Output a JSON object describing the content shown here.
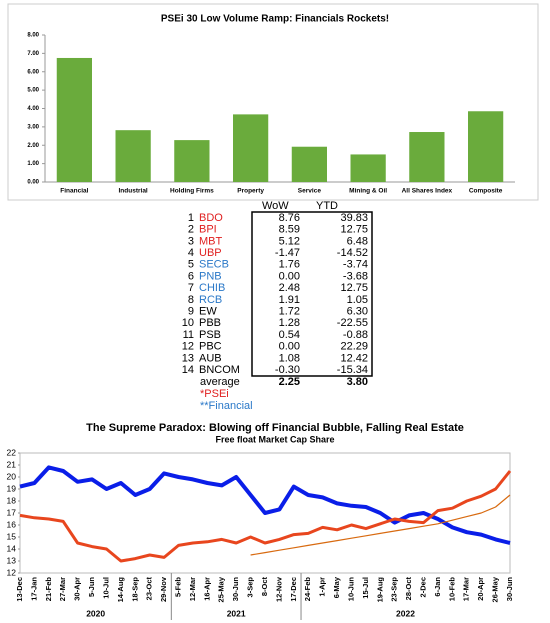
{
  "chart_data": [
    {
      "type": "bar",
      "title": "PSEi 30 Low Volume Ramp: Financials Rockets!",
      "categories": [
        "Financial",
        "Industrial",
        "Holding Firms",
        "Property",
        "Service",
        "Mining & Oil",
        "All Shares Index",
        "Composite"
      ],
      "values": [
        6.75,
        2.82,
        2.28,
        3.68,
        1.92,
        1.5,
        2.72,
        3.85
      ],
      "color": "#6aab3c",
      "ylim": [
        0,
        8
      ],
      "yticks": [
        {
          "value": 0,
          "label": "0.00"
        },
        {
          "value": 1,
          "label": "1.00"
        },
        {
          "value": 2,
          "label": "2.00"
        },
        {
          "value": 3,
          "label": "3.00"
        },
        {
          "value": 4,
          "label": "4.00"
        },
        {
          "value": 5,
          "label": "5.00"
        },
        {
          "value": 6,
          "label": "6.00"
        },
        {
          "value": 7,
          "label": "7.00"
        },
        {
          "value": 8,
          "label": "8.00"
        }
      ],
      "grid": false
    },
    {
      "type": "line",
      "title": "The Supreme Paradox:  Blowing off Financial Bubble, Falling Real Estate",
      "subtitle": "Free float Market Cap Share",
      "categories": [
        "13-Dec",
        "17-Jan",
        "21-Feb",
        "27-Mar",
        "30-Apr",
        "5-Jun",
        "10-Jul",
        "14-Aug",
        "18-Sep",
        "23-Oct",
        "29-Nov",
        "5-Feb",
        "12-Mar",
        "16-Apr",
        "25-May",
        "30-Jun",
        "3-Sep",
        "8-Oct",
        "12-Nov",
        "17-Dec",
        "24-Feb",
        "1-Apr",
        "6-May",
        "10-Jun",
        "15-Jul",
        "19-Aug",
        "23-Sep",
        "28-Oct",
        "2-Dec",
        "6-Jan",
        "10-Feb",
        "17-Mar",
        "20-Apr",
        "26-May",
        "30-Jun"
      ],
      "year_labels": [
        "2020",
        "2021",
        "2022"
      ],
      "series": [
        {
          "color": "#0a1ee8",
          "width": 4,
          "values": [
            19.2,
            19.5,
            20.8,
            20.5,
            19.6,
            19.8,
            19.0,
            19.5,
            18.5,
            19.0,
            20.3,
            20.0,
            19.8,
            19.5,
            19.3,
            20.0,
            18.5,
            17.0,
            17.3,
            19.2,
            18.5,
            18.3,
            17.8,
            17.6,
            17.5,
            17.0,
            16.2,
            16.8,
            17.0,
            16.5,
            15.8,
            15.4,
            15.2,
            14.8,
            14.5
          ]
        },
        {
          "color": "#e8461e",
          "width": 3,
          "values": [
            16.8,
            16.6,
            16.5,
            16.3,
            14.5,
            14.2,
            14.0,
            13.0,
            13.2,
            13.5,
            13.3,
            14.3,
            14.5,
            14.6,
            14.8,
            14.5,
            15.0,
            14.5,
            14.8,
            15.2,
            15.3,
            15.8,
            15.6,
            16.0,
            15.7,
            16.1,
            16.5,
            16.3,
            16.2,
            17.2,
            17.4,
            18.0,
            18.4,
            19.0,
            20.5
          ]
        },
        {
          "color": "#d86a10",
          "width": 1.2,
          "values": [
            null,
            null,
            null,
            null,
            null,
            null,
            null,
            null,
            null,
            null,
            null,
            null,
            null,
            null,
            null,
            null,
            13.5,
            13.7,
            13.9,
            14.1,
            14.3,
            14.5,
            14.7,
            14.9,
            15.1,
            15.3,
            15.5,
            15.7,
            15.9,
            16.1,
            16.4,
            16.7,
            17.0,
            17.5,
            18.5
          ]
        }
      ],
      "ylim": [
        12,
        22
      ],
      "yticks": [
        12,
        13,
        14,
        15,
        16,
        17,
        18,
        19,
        20,
        21,
        22
      ],
      "grid": false
    }
  ],
  "table": {
    "headers": [
      "WoW",
      "YTD"
    ],
    "rows": [
      {
        "rank": "1",
        "name": "BDO",
        "color": "#e02020",
        "wow": "8.76",
        "ytd": "39.83"
      },
      {
        "rank": "2",
        "name": "BPI",
        "color": "#e02020",
        "wow": "8.59",
        "ytd": "12.75"
      },
      {
        "rank": "3",
        "name": "MBT",
        "color": "#e02020",
        "wow": "5.12",
        "ytd": "6.48"
      },
      {
        "rank": "4",
        "name": "UBP",
        "color": "#e02020",
        "wow": "-1.47",
        "ytd": "-14.52"
      },
      {
        "rank": "5",
        "name": "SECB",
        "color": "#2a78c8",
        "wow": "1.76",
        "ytd": "-3.74"
      },
      {
        "rank": "6",
        "name": "PNB",
        "color": "#2a78c8",
        "wow": "0.00",
        "ytd": "-3.68"
      },
      {
        "rank": "7",
        "name": "CHIB",
        "color": "#2a78c8",
        "wow": "2.48",
        "ytd": "12.75"
      },
      {
        "rank": "8",
        "name": "RCB",
        "color": "#2a78c8",
        "wow": "1.91",
        "ytd": "1.05"
      },
      {
        "rank": "9",
        "name": "EW",
        "color": "#000000",
        "wow": "1.72",
        "ytd": "6.30"
      },
      {
        "rank": "10",
        "name": "PBB",
        "color": "#000000",
        "wow": "1.28",
        "ytd": "-22.55"
      },
      {
        "rank": "11",
        "name": "PSB",
        "color": "#000000",
        "wow": "0.54",
        "ytd": "-0.88"
      },
      {
        "rank": "12",
        "name": "PBC",
        "color": "#000000",
        "wow": "0.00",
        "ytd": "22.29"
      },
      {
        "rank": "13",
        "name": "AUB",
        "color": "#000000",
        "wow": "1.08",
        "ytd": "12.42"
      },
      {
        "rank": "14",
        "name": "BNCOM",
        "color": "#000000",
        "wow": "-0.30",
        "ytd": "-15.34"
      }
    ],
    "average": {
      "label": "average",
      "wow": "2.25",
      "ytd": "3.80"
    },
    "notes": [
      {
        "text": "*PSEi",
        "color": "#e02020"
      },
      {
        "text": "**Financial",
        "color": "#2a78c8"
      }
    ]
  }
}
